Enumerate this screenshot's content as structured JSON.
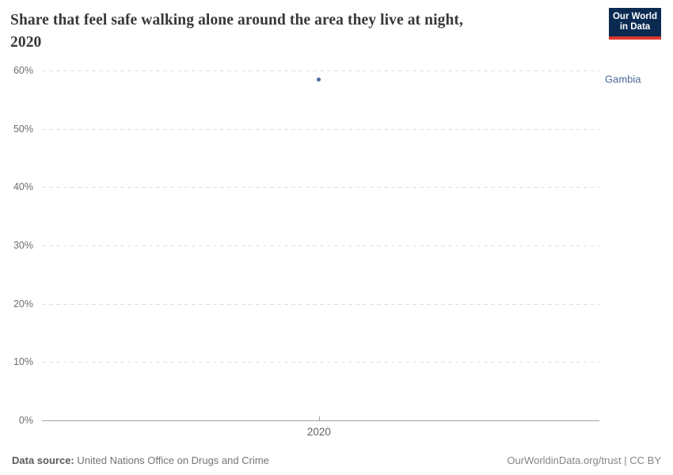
{
  "header": {
    "title_rows": [
      "Share that feel safe walking alone around the area they live at night,",
      "2020"
    ],
    "logo": {
      "line1": "Our World",
      "line2": "in Data",
      "bg_color": "#0a2a52",
      "accent_color": "#e0352c"
    }
  },
  "chart_data": {
    "type": "scatter",
    "title": "Share that feel safe walking alone around the area they live at night, 2020",
    "series": [
      {
        "name": "Gambia",
        "color": "#4c6a9c",
        "points": [
          {
            "x": 2020,
            "y": 58.5
          }
        ]
      }
    ],
    "x_ticks": [
      "2020"
    ],
    "y_ticks": [
      0,
      10,
      20,
      30,
      40,
      50,
      60
    ],
    "y_tick_suffix": "%",
    "ylim": [
      0,
      60
    ],
    "grid": "horizontal-dashed",
    "legend_position": "right-edge-entity-label"
  },
  "footer": {
    "source_label": "Data source:",
    "source_value": "United Nations Office on Drugs and Crime",
    "attribution": "OurWorldinData.org/trust | CC BY"
  }
}
